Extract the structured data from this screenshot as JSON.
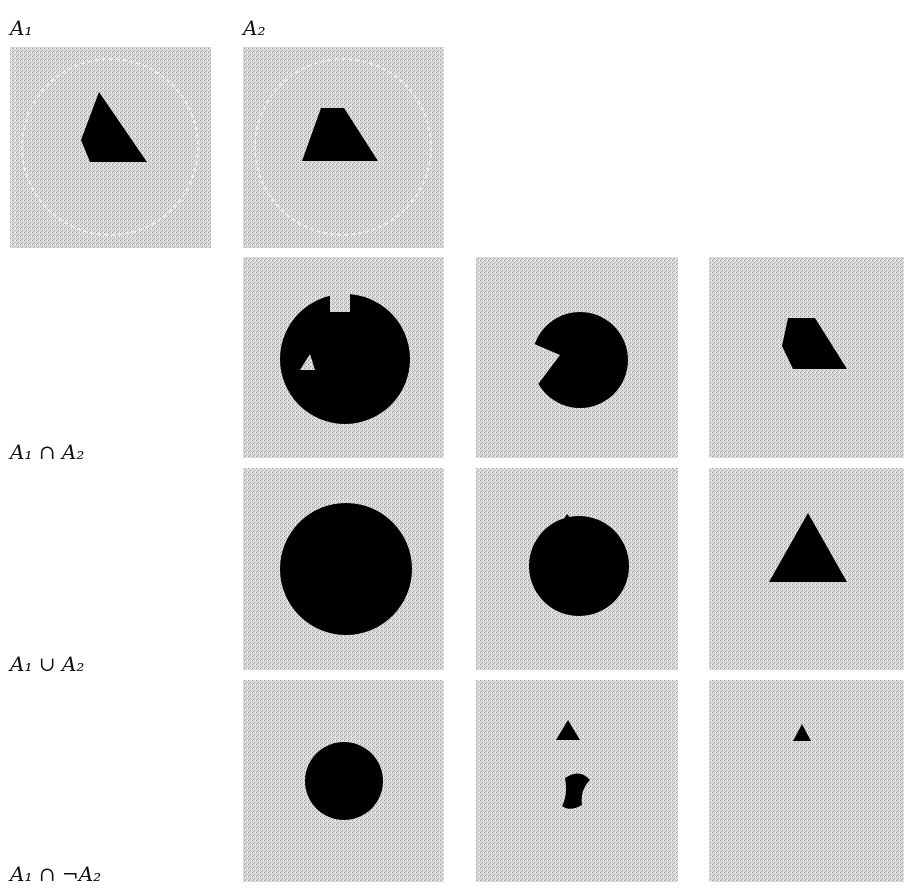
{
  "column_labels": [
    "A₁",
    "A₂"
  ],
  "row_labels": [
    "A₁ ∩ A₂",
    "A₁ ∪ A₂",
    "A₁ ∩ ¬A₂"
  ]
}
